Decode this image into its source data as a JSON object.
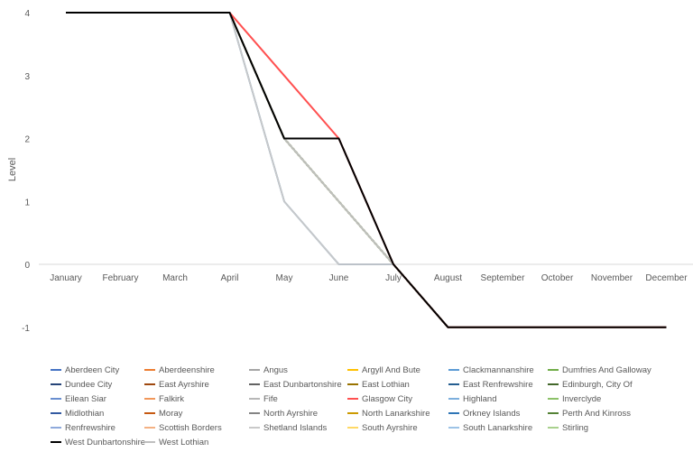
{
  "chart_data": {
    "type": "line",
    "title": "",
    "xlabel": "",
    "ylabel": "Level",
    "ylim": [
      -1,
      4
    ],
    "yticks": [
      "-1",
      "0",
      "1",
      "2",
      "3",
      "4"
    ],
    "categories": [
      "January",
      "February",
      "March",
      "April",
      "May",
      "June",
      "July",
      "August",
      "September",
      "October",
      "November",
      "December"
    ],
    "legend_position": "bottom",
    "series": [
      {
        "name": "Aberdeen City",
        "color": "#4472C4",
        "values": [
          4,
          4,
          4,
          4,
          2,
          1,
          0,
          -1,
          -1,
          -1,
          -1,
          -1
        ]
      },
      {
        "name": "Aberdeenshire",
        "color": "#ED7D31",
        "values": [
          4,
          4,
          4,
          4,
          2,
          1,
          0,
          -1,
          -1,
          -1,
          -1,
          -1
        ]
      },
      {
        "name": "Angus",
        "color": "#A5A5A5",
        "values": [
          4,
          4,
          4,
          4,
          2,
          1,
          0,
          -1,
          -1,
          -1,
          -1,
          -1
        ]
      },
      {
        "name": "Argyll And Bute",
        "color": "#FFC000",
        "values": [
          4,
          4,
          4,
          4,
          2,
          1,
          0,
          -1,
          -1,
          -1,
          -1,
          -1
        ]
      },
      {
        "name": "Clackmannanshire",
        "color": "#5B9BD5",
        "values": [
          4,
          4,
          4,
          4,
          2,
          1,
          0,
          -1,
          -1,
          -1,
          -1,
          -1
        ]
      },
      {
        "name": "Dumfries And Galloway",
        "color": "#70AD47",
        "values": [
          4,
          4,
          4,
          4,
          2,
          1,
          0,
          -1,
          -1,
          -1,
          -1,
          -1
        ]
      },
      {
        "name": "Dundee City",
        "color": "#264478",
        "values": [
          4,
          4,
          4,
          4,
          2,
          1,
          0,
          -1,
          -1,
          -1,
          -1,
          -1
        ]
      },
      {
        "name": "East Ayrshire",
        "color": "#9E480E",
        "values": [
          4,
          4,
          4,
          4,
          2,
          1,
          0,
          -1,
          -1,
          -1,
          -1,
          -1
        ]
      },
      {
        "name": "East Dunbartonshire",
        "color": "#636363",
        "values": [
          4,
          4,
          4,
          4,
          2,
          1,
          0,
          -1,
          -1,
          -1,
          -1,
          -1
        ]
      },
      {
        "name": "East Lothian",
        "color": "#997300",
        "values": [
          4,
          4,
          4,
          4,
          2,
          1,
          0,
          -1,
          -1,
          -1,
          -1,
          -1
        ]
      },
      {
        "name": "East Renfrewshire",
        "color": "#255E91",
        "values": [
          4,
          4,
          4,
          4,
          2,
          1,
          0,
          -1,
          -1,
          -1,
          -1,
          -1
        ]
      },
      {
        "name": "Edinburgh, City Of",
        "color": "#43682B",
        "values": [
          4,
          4,
          4,
          4,
          2,
          1,
          0,
          -1,
          -1,
          -1,
          -1,
          -1
        ]
      },
      {
        "name": "Eilean Siar",
        "color": "#698ED0",
        "values": [
          4,
          4,
          4,
          4,
          2,
          1,
          0,
          -1,
          -1,
          -1,
          -1,
          -1
        ]
      },
      {
        "name": "Falkirk",
        "color": "#F1975A",
        "values": [
          4,
          4,
          4,
          4,
          2,
          1,
          0,
          -1,
          -1,
          -1,
          -1,
          -1
        ]
      },
      {
        "name": "Fife",
        "color": "#B7B7B7",
        "values": [
          4,
          4,
          4,
          4,
          2,
          1,
          0,
          -1,
          -1,
          -1,
          -1,
          -1
        ]
      },
      {
        "name": "Glasgow City",
        "color": "#FF5050",
        "values": [
          4,
          4,
          4,
          4,
          3,
          2,
          0,
          -1,
          -1,
          -1,
          -1,
          -1
        ]
      },
      {
        "name": "Highland",
        "color": "#7CAFDD",
        "values": [
          4,
          4,
          4,
          4,
          2,
          1,
          0,
          -1,
          -1,
          -1,
          -1,
          -1
        ]
      },
      {
        "name": "Inverclyde",
        "color": "#8CC168",
        "values": [
          4,
          4,
          4,
          4,
          2,
          1,
          0,
          -1,
          -1,
          -1,
          -1,
          -1
        ]
      },
      {
        "name": "Midlothian",
        "color": "#335AA1",
        "values": [
          4,
          4,
          4,
          4,
          2,
          1,
          0,
          -1,
          -1,
          -1,
          -1,
          -1
        ]
      },
      {
        "name": "Moray",
        "color": "#C65911",
        "values": [
          4,
          4,
          4,
          4,
          2,
          1,
          0,
          -1,
          -1,
          -1,
          -1,
          -1
        ]
      },
      {
        "name": "North Ayrshire",
        "color": "#848484",
        "values": [
          4,
          4,
          4,
          4,
          2,
          1,
          0,
          -1,
          -1,
          -1,
          -1,
          -1
        ]
      },
      {
        "name": "North Lanarkshire",
        "color": "#CC9A00",
        "values": [
          4,
          4,
          4,
          4,
          2,
          1,
          0,
          -1,
          -1,
          -1,
          -1,
          -1
        ]
      },
      {
        "name": "Orkney Islands",
        "color": "#2E75B6",
        "values": [
          4,
          4,
          4,
          4,
          1,
          0,
          0,
          -1,
          -1,
          -1,
          -1,
          -1
        ]
      },
      {
        "name": "Perth And Kinross",
        "color": "#548235",
        "values": [
          4,
          4,
          4,
          4,
          2,
          1,
          0,
          -1,
          -1,
          -1,
          -1,
          -1
        ]
      },
      {
        "name": "Renfrewshire",
        "color": "#8FAADC",
        "values": [
          4,
          4,
          4,
          4,
          2,
          1,
          0,
          -1,
          -1,
          -1,
          -1,
          -1
        ]
      },
      {
        "name": "Scottish Borders",
        "color": "#F4B183",
        "values": [
          4,
          4,
          4,
          4,
          2,
          1,
          0,
          -1,
          -1,
          -1,
          -1,
          -1
        ]
      },
      {
        "name": "Shetland Islands",
        "color": "#C9C9C9",
        "values": [
          4,
          4,
          4,
          4,
          1,
          0,
          0,
          -1,
          -1,
          -1,
          -1,
          -1
        ]
      },
      {
        "name": "South Ayrshire",
        "color": "#FFD966",
        "values": [
          4,
          4,
          4,
          4,
          2,
          1,
          0,
          -1,
          -1,
          -1,
          -1,
          -1
        ]
      },
      {
        "name": "South Lanarkshire",
        "color": "#9DC3E6",
        "values": [
          4,
          4,
          4,
          4,
          2,
          1,
          0,
          -1,
          -1,
          -1,
          -1,
          -1
        ]
      },
      {
        "name": "Stirling",
        "color": "#A9D18E",
        "values": [
          4,
          4,
          4,
          4,
          2,
          1,
          0,
          -1,
          -1,
          -1,
          -1,
          -1
        ]
      },
      {
        "name": "West Dunbartonshire",
        "color": "#000000",
        "values": [
          4,
          4,
          4,
          4,
          2,
          2,
          0,
          -1,
          -1,
          -1,
          -1,
          -1
        ]
      },
      {
        "name": "West Lothian",
        "color": "#BFBFBF",
        "values": [
          4,
          4,
          4,
          4,
          2,
          1,
          0,
          -1,
          -1,
          -1,
          -1,
          -1
        ]
      }
    ]
  }
}
